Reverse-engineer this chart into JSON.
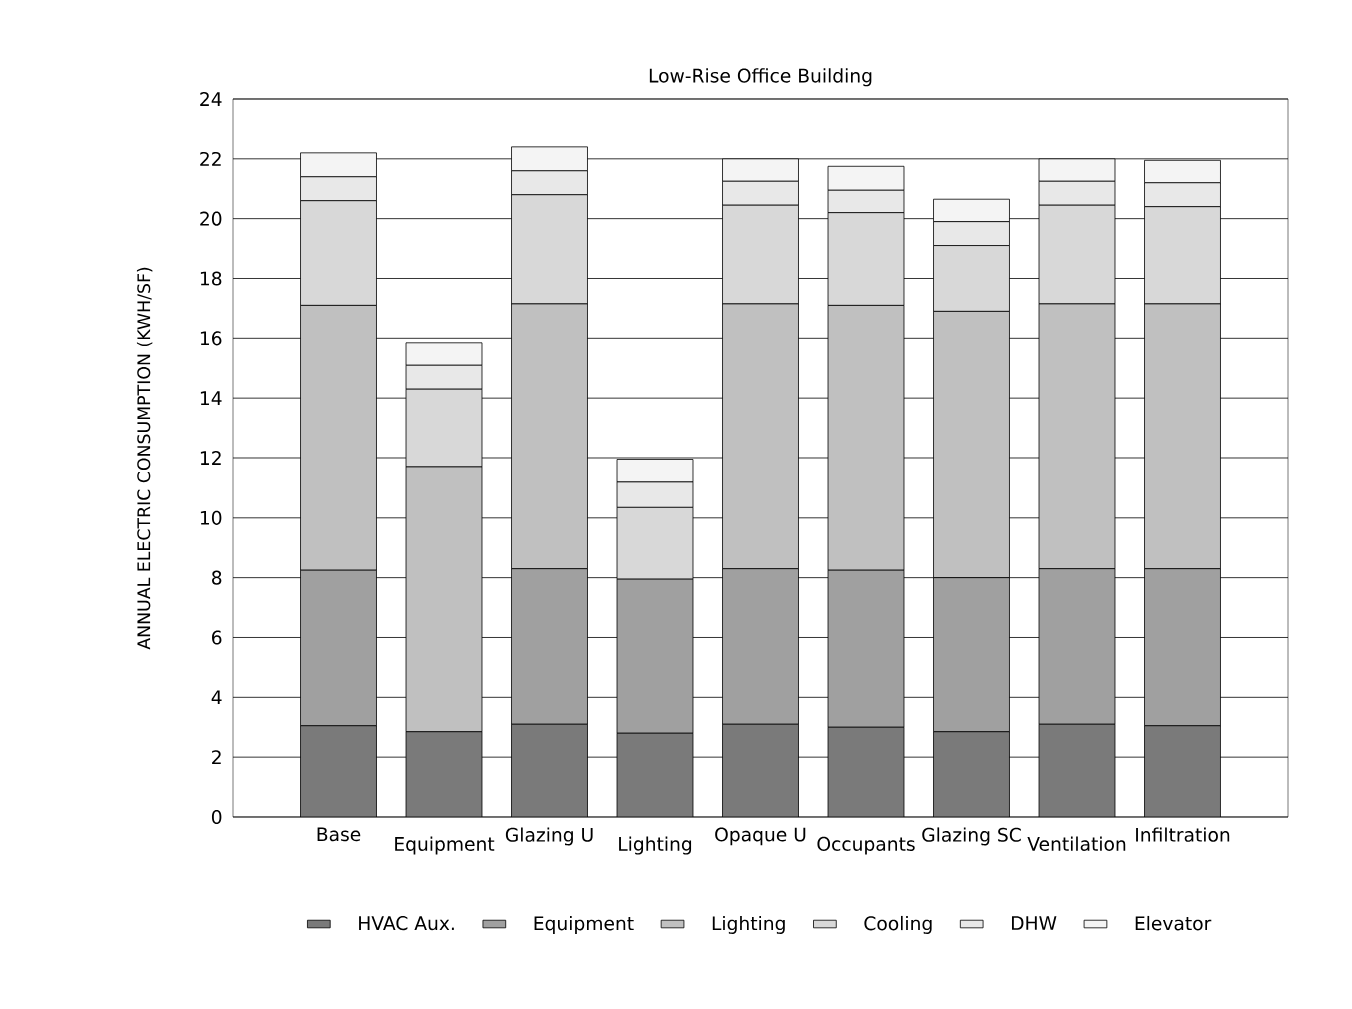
{
  "chart_data": {
    "type": "bar",
    "stacked": true,
    "title": "Low-Rise Office Building",
    "ylabel": "ANNUAL ELECTRIC CONSUMPTION (KWH/SF)",
    "categories": [
      "Base",
      "Equipment",
      "Glazing U",
      "Lighting",
      "Opaque U",
      "Occupants",
      "Glazing SC",
      "Ventilation",
      "Infiltration"
    ],
    "series": [
      {
        "name": "HVAC Aux.",
        "color": "#7a7a7a",
        "values": [
          3.05,
          2.85,
          3.1,
          2.8,
          3.1,
          3.0,
          2.85,
          3.1,
          3.05
        ]
      },
      {
        "name": "Equipment",
        "color": "#a0a0a0",
        "values": [
          5.2,
          0,
          5.2,
          5.15,
          5.2,
          5.25,
          5.15,
          5.2,
          5.25
        ]
      },
      {
        "name": "Lighting",
        "color": "#c0c0c0",
        "values": [
          8.85,
          8.85,
          8.85,
          0,
          8.85,
          8.85,
          8.9,
          8.85,
          8.85
        ]
      },
      {
        "name": "Cooling",
        "color": "#d8d8d8",
        "values": [
          3.5,
          2.6,
          3.65,
          2.4,
          3.3,
          3.1,
          2.2,
          3.3,
          3.25
        ]
      },
      {
        "name": "DHW",
        "color": "#e8e8e8",
        "values": [
          0.8,
          0.8,
          0.8,
          0.85,
          0.8,
          0.75,
          0.8,
          0.8,
          0.8
        ]
      },
      {
        "name": "Elevator",
        "color": "#f4f4f4",
        "values": [
          0.8,
          0.75,
          0.8,
          0.75,
          0.75,
          0.8,
          0.75,
          0.75,
          0.75
        ]
      }
    ],
    "ylim": [
      0,
      24
    ],
    "yticks": [
      0,
      2,
      4,
      6,
      8,
      10,
      12,
      14,
      16,
      18,
      20,
      22,
      24
    ],
    "grid": "y",
    "legend": "bottom"
  }
}
